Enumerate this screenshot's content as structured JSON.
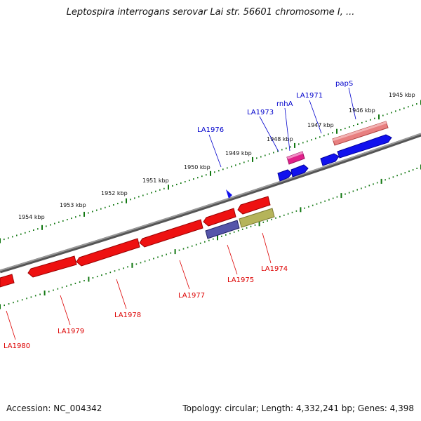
{
  "title": "Leptospira interrogans serovar Lai str. 56601 chromosome I, ...",
  "footer": {
    "accession": "Accession: NC_004342",
    "summary": "Topology: circular; Length: 4,332,241 bp; Genes: 4,398"
  },
  "colors": {
    "backbone": "#808080",
    "ticks": "#117711",
    "forward_label": "#0000cc",
    "reverse_label": "#dd0000",
    "forward_gene": "#0000ee",
    "reverse_gene": "#ee0000"
  },
  "tick_labels": [
    "1945 kbp",
    "1946 kbp",
    "1947 kbp",
    "1948 kbp",
    "1949 kbp",
    "1950 kbp",
    "1951 kbp",
    "1952 kbp",
    "1953 kbp",
    "1954 kbp"
  ],
  "forward_gene_labels": [
    "papS",
    "LA1971",
    "rnhA",
    "LA1973",
    "LA1976"
  ],
  "reverse_gene_labels": [
    "LA1974",
    "LA1975",
    "LA1977",
    "LA1978",
    "LA1979",
    "LA1980"
  ]
}
